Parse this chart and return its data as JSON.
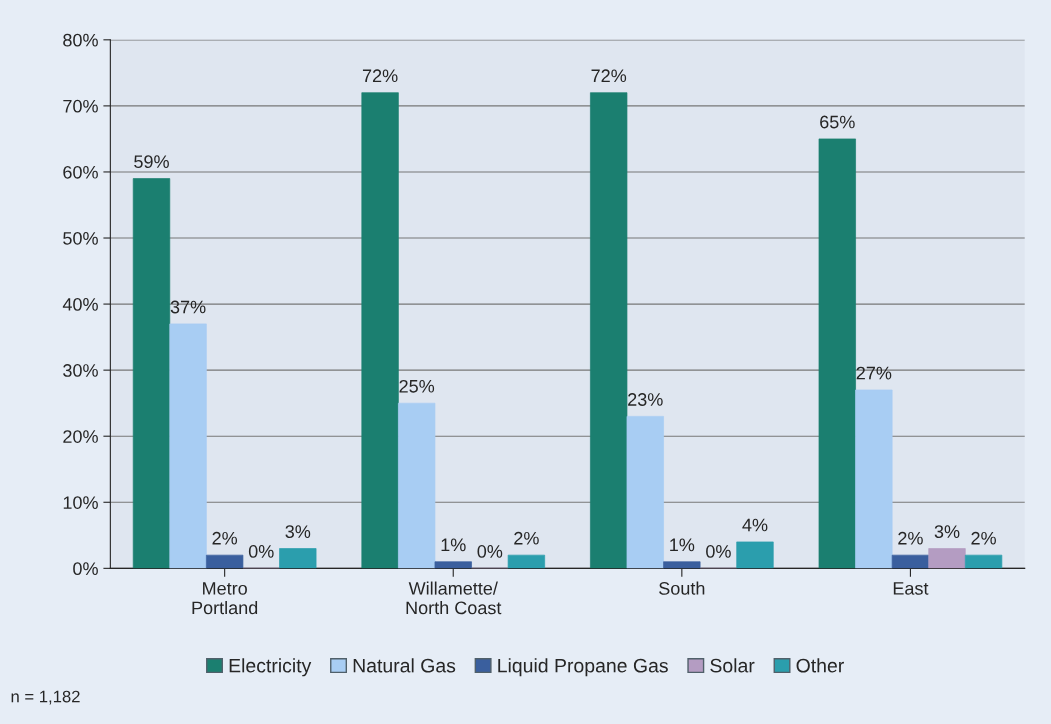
{
  "chart_data": {
    "type": "bar",
    "categories": [
      "Metro\nPortland",
      "Willamette/\nNorth Coast",
      "South",
      "East"
    ],
    "series": [
      {
        "name": "Electricity",
        "color": "#1b7f70",
        "values": [
          59,
          72,
          72,
          65
        ],
        "value_labels": [
          "59%",
          "72%",
          "72%",
          "65%"
        ]
      },
      {
        "name": "Natural Gas",
        "color": "#a8cdf3",
        "values": [
          37,
          25,
          23,
          27
        ],
        "value_labels": [
          "37%",
          "25%",
          "23%",
          "27%"
        ]
      },
      {
        "name": "Liquid Propane Gas",
        "color": "#3a5f9e",
        "values": [
          2,
          1,
          1,
          2
        ],
        "value_labels": [
          "2%",
          "1%",
          "1%",
          "2%"
        ]
      },
      {
        "name": "Solar",
        "color": "#b49cc2",
        "values": [
          0,
          0,
          0,
          3
        ],
        "value_labels": [
          "0%",
          "0%",
          "0%",
          "3%"
        ]
      },
      {
        "name": "Other",
        "color": "#2b9ead",
        "values": [
          3,
          2,
          4,
          2
        ],
        "value_labels": [
          "3%",
          "2%",
          "4%",
          "2%"
        ]
      }
    ],
    "ylim": [
      0,
      80
    ],
    "yticks": [
      {
        "value": 0,
        "label": "0%"
      },
      {
        "value": 10,
        "label": "10%"
      },
      {
        "value": 20,
        "label": "20%"
      },
      {
        "value": 30,
        "label": "30%"
      },
      {
        "value": 40,
        "label": "40%"
      },
      {
        "value": 50,
        "label": "50%"
      },
      {
        "value": 60,
        "label": "60%"
      },
      {
        "value": 70,
        "label": "70%"
      },
      {
        "value": 80,
        "label": "80%"
      }
    ],
    "grid": "y",
    "legend": "bottom",
    "annotations": [
      "n = 1,182"
    ]
  }
}
